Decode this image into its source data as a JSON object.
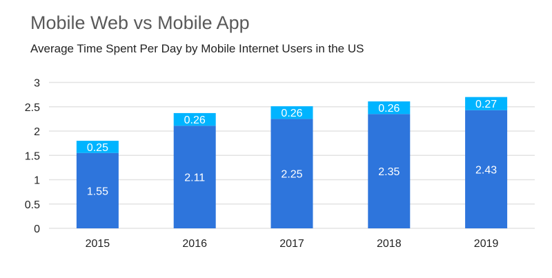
{
  "chart_data": {
    "type": "bar",
    "stacked": true,
    "title": "Mobile Web vs Mobile App",
    "subtitle": "Average Time Spent Per Day by Mobile Internet Users in the US",
    "xlabel": "",
    "ylabel": "",
    "categories": [
      "2015",
      "2016",
      "2017",
      "2018",
      "2019"
    ],
    "series": [
      {
        "values": [
          1.55,
          2.11,
          2.25,
          2.35,
          2.43
        ],
        "color": "#2e75dc"
      },
      {
        "values": [
          0.25,
          0.26,
          0.26,
          0.26,
          0.27
        ],
        "color": "#00b4ff"
      }
    ],
    "ylim": [
      0,
      3
    ],
    "yticks": [
      "0",
      "0.5",
      "1",
      "1.5",
      "2",
      "2.5",
      "3"
    ],
    "grid": true,
    "legend": "none",
    "data_labels": true
  }
}
